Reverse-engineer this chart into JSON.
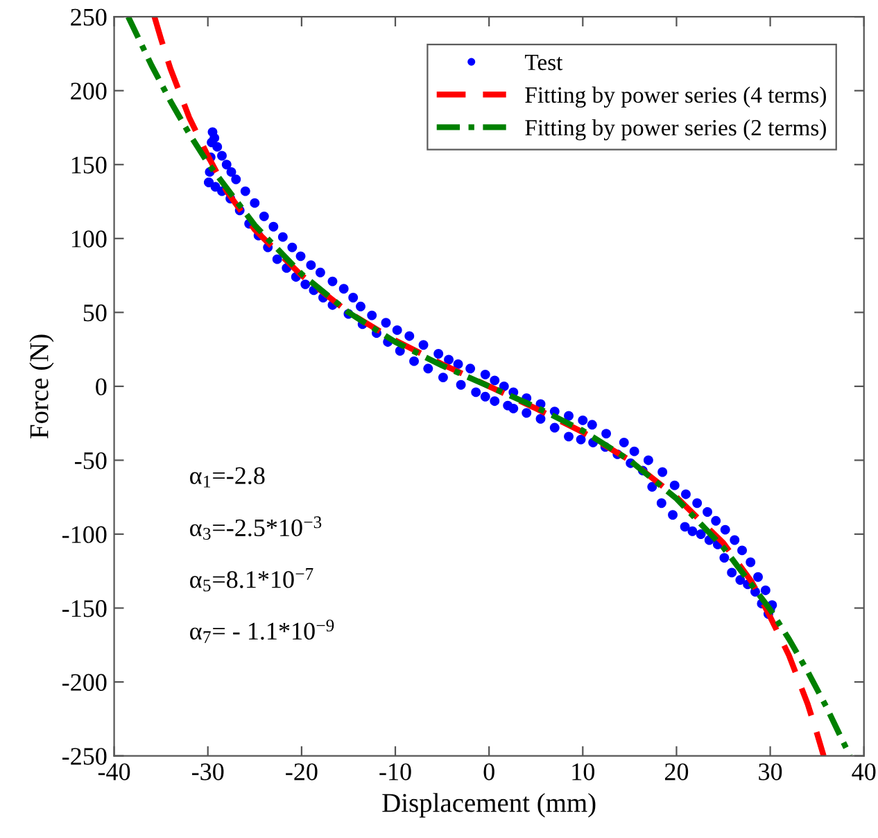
{
  "chart_data": {
    "type": "line",
    "xlabel": "Displacement (mm)",
    "ylabel": "Force (N)",
    "xlim": [
      -40,
      40
    ],
    "ylim": [
      -250,
      250
    ],
    "xticks": [
      -40,
      -30,
      -20,
      -10,
      0,
      10,
      20,
      30,
      40
    ],
    "yticks": [
      -250,
      -200,
      -150,
      -100,
      -50,
      0,
      50,
      100,
      150,
      200,
      250
    ],
    "grid": false,
    "legend": "top right",
    "series": [
      {
        "name": "Test",
        "type": "scatter",
        "marker": "circle",
        "color": "#0000ff",
        "x": [
          -29.9,
          -29.8,
          -29.7,
          -29.6,
          -29.5,
          -29.3,
          -29.0,
          -28.5,
          -28,
          -27.5,
          -27.0,
          -26,
          -25,
          -24.0,
          -23,
          -22,
          -21,
          -20.1,
          -19,
          -18,
          -16.7,
          -15.5,
          -14.5,
          -13.7,
          -12.5,
          -11,
          -9.8,
          -8.5,
          -7,
          -5.4,
          -4.3,
          -3.3,
          -2,
          -0.4,
          0.6,
          1.6,
          2.6,
          4,
          5.5,
          7.0,
          8.5,
          10,
          11.0,
          12.5,
          14.4,
          15.5,
          17,
          18.5,
          19.8,
          21,
          22.2,
          23.3,
          24.2,
          25.2,
          26.2,
          27,
          27.9,
          28.7,
          29.5,
          30.2,
          30.0,
          29.8,
          29.1,
          28.4,
          27.6,
          26.8,
          25.9,
          25.1,
          24.4,
          23.5,
          22.6,
          21.7,
          20.9,
          19.6,
          18.4,
          17.4,
          16.4,
          15.1,
          13.7,
          12.4,
          11.1,
          9.8,
          8.5,
          7,
          5.5,
          4,
          2.6,
          2.0,
          0.6,
          -0.4,
          -1.4,
          -3,
          -4.9,
          -6.5,
          -8,
          -9.5,
          -10.8,
          -12,
          -13.5,
          -15,
          -16.7,
          -17.7,
          -18.7,
          -19.6,
          -20.6,
          -21.6,
          -22.6,
          -23.6,
          -24.6,
          -25.6,
          -26.6,
          -27.6,
          -28.5,
          -29.2,
          -29.9
        ],
        "values": [
          138,
          145,
          155,
          165,
          172,
          168,
          162,
          156,
          150,
          145,
          140,
          132,
          124,
          115,
          108,
          101,
          94,
          88,
          82,
          77,
          71,
          66,
          60,
          54,
          48,
          43,
          38,
          34,
          28,
          22,
          18,
          15,
          12,
          8,
          4,
          0,
          -4,
          -8,
          -12,
          -17,
          -20,
          -23,
          -26,
          -32,
          -38,
          -44,
          -50,
          -58,
          -67,
          -73,
          -79,
          -85,
          -91,
          -97,
          -104,
          -111,
          -119,
          -129,
          -138,
          -148,
          -151,
          -154,
          -147,
          -139,
          -134,
          -131,
          -126,
          -116,
          -107,
          -104,
          -100,
          -98,
          -95,
          -87,
          -79,
          -68,
          -57,
          -52,
          -46,
          -41,
          -38,
          -36,
          -34,
          -28,
          -22,
          -18,
          -15,
          -13,
          -10,
          -7,
          -4,
          1,
          6,
          12,
          17,
          24,
          30,
          36,
          42,
          49,
          55,
          60,
          65,
          69,
          74,
          80,
          86,
          94,
          102,
          110,
          119,
          127,
          132,
          135,
          138
        ]
      },
      {
        "name": "Fitting by power series (4 terms)",
        "line_style": "dashed",
        "color": "#ff0000",
        "x": [
          -35.7,
          -35,
          -34,
          -32,
          -30,
          -28,
          -25,
          -20,
          -15,
          -10,
          -5,
          0,
          5,
          10,
          15,
          20,
          25,
          28,
          30,
          32,
          34,
          35,
          35.7
        ],
        "values": [
          250,
          235,
          215,
          182,
          156,
          132,
          106,
          75,
          50,
          31,
          15,
          0,
          -15,
          -31,
          -50,
          -75,
          -106,
          -132,
          -156,
          -182,
          -215,
          -235,
          -250
        ]
      },
      {
        "name": "Fitting by power series (2 terms)",
        "line_style": "dashdot",
        "color": "#008000",
        "x": [
          -38.5,
          -36,
          -34,
          -32,
          -30,
          -25,
          -20,
          -15,
          -10,
          -5,
          0,
          5,
          10,
          15,
          20,
          25,
          30,
          32,
          34,
          36,
          38.5
        ],
        "values": [
          250,
          217,
          193,
          171,
          151,
          109,
          76,
          50,
          30,
          14,
          0,
          -14,
          -30,
          -50,
          -76,
          -109,
          -151,
          -171,
          -193,
          -217,
          -250
        ]
      }
    ],
    "annotations": [
      "α$_{1}$=-2.8",
      "α$_{3}$=-2.5*10$^{−3}$",
      "α$_{5}$=8.1*10$^{−7}$",
      "α$_{7}$= - 1.1*10$^{−9}$"
    ]
  }
}
